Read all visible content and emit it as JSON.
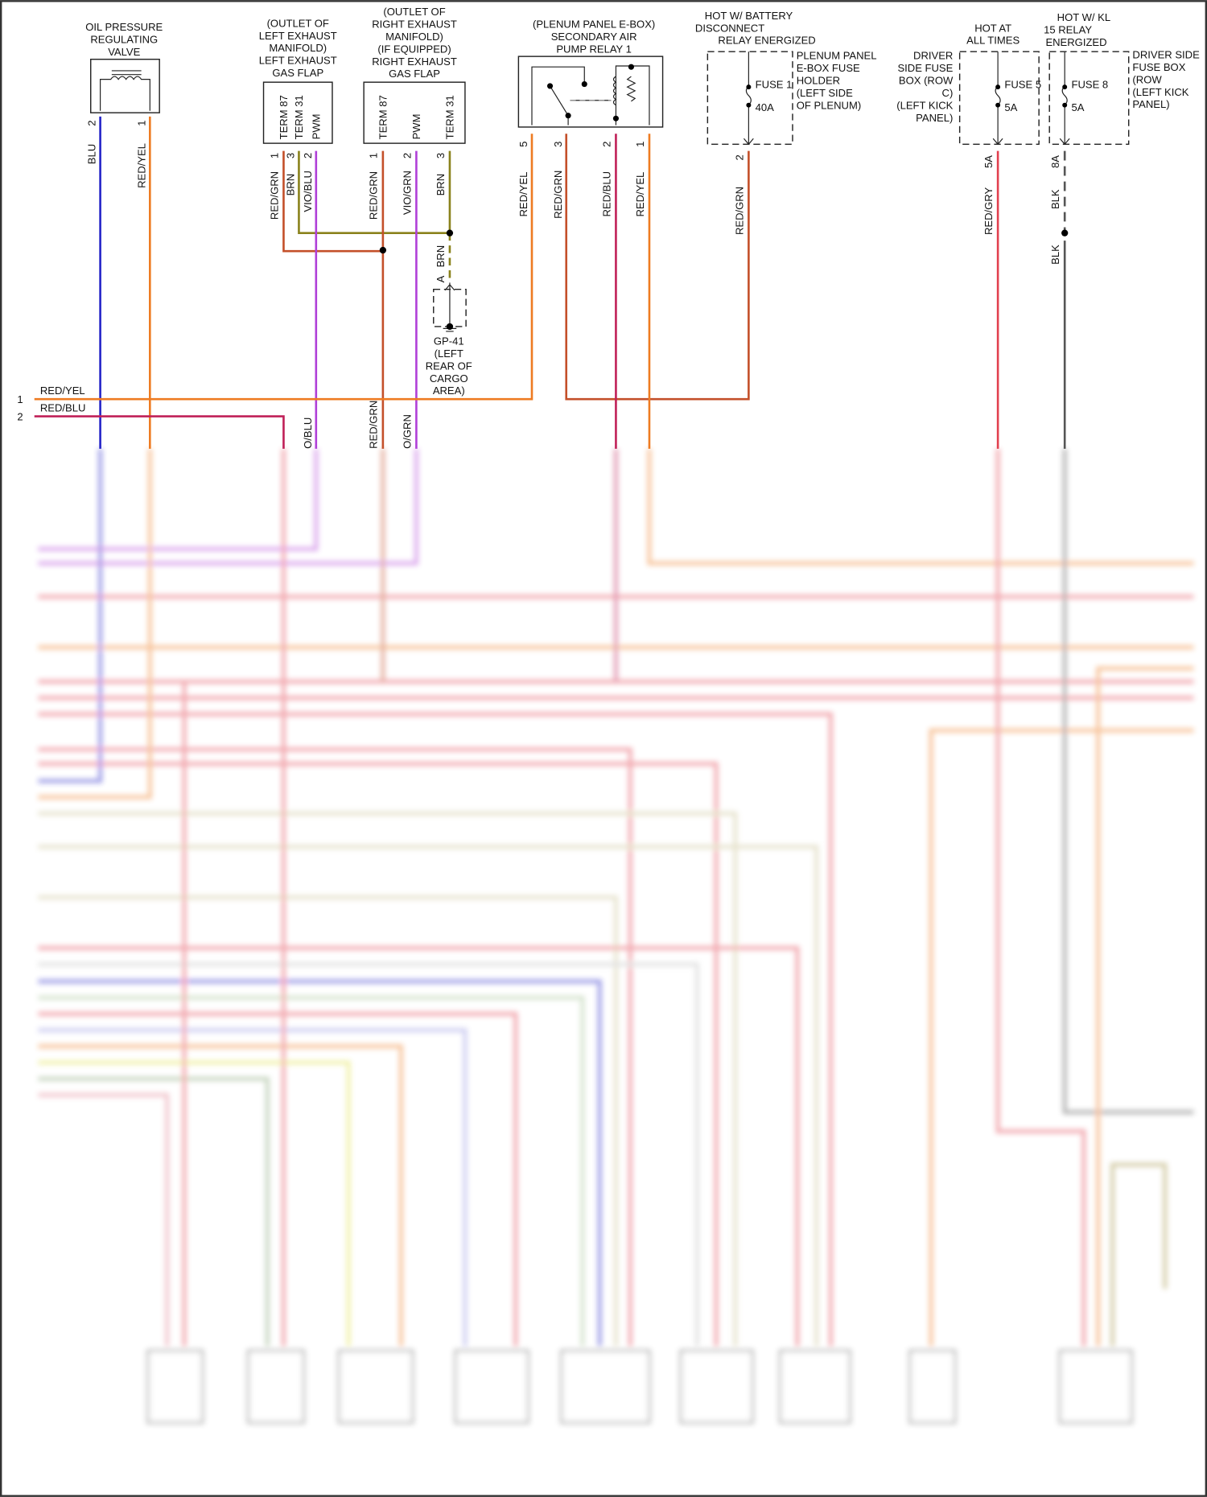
{
  "colors": {
    "red_yel": "#ee7b22",
    "red_grn": "#c4502a",
    "brn": "#8a821c",
    "vio": "#b040d8",
    "blu": "#2424c8",
    "red_blu": "#c02058",
    "red_gry": "#e2404f",
    "blk": "#555555"
  },
  "oil_valve": {
    "title": [
      "OIL PRESSURE",
      "REGULATING",
      "VALVE"
    ],
    "pins": [
      "2",
      "1"
    ],
    "wires": [
      "BLU",
      "RED/YEL"
    ]
  },
  "left_flap": {
    "title": [
      "(OUTLET OF",
      "LEFT EXHAUST",
      "MANIFOLD)",
      "LEFT EXHAUST",
      "GAS FLAP"
    ],
    "terms": [
      "TERM 87",
      "TERM 31",
      "PWM"
    ],
    "pins": [
      "1",
      "3",
      "2"
    ],
    "wires": [
      "RED/GRN",
      "BRN",
      "VIO/BLU"
    ]
  },
  "right_flap": {
    "title": [
      "(OUTLET OF",
      "RIGHT EXHAUST",
      "MANIFOLD)",
      "(IF EQUIPPED)",
      "RIGHT EXHAUST",
      "GAS FLAP"
    ],
    "terms": [
      "TERM 87",
      "PWM",
      "TERM 31"
    ],
    "pins": [
      "1",
      "2",
      "3"
    ],
    "wires": [
      "RED/GRN",
      "VIO/GRN",
      "BRN"
    ]
  },
  "ground": {
    "wire": "BRN",
    "pin": "A",
    "label": [
      "GP-41",
      "(LEFT",
      "REAR OF",
      "CARGO",
      "AREA)"
    ]
  },
  "relay": {
    "title": [
      "(PLENUM PANEL E-BOX)",
      "SECONDARY AIR",
      "PUMP RELAY 1"
    ],
    "pins": [
      "5",
      "3",
      "2",
      "1"
    ],
    "wires": [
      "RED/YEL",
      "RED/GRN",
      "RED/BLU",
      "RED/YEL"
    ]
  },
  "fuse1": {
    "hot": [
      "HOT W/ BATTERY",
      "DISCONNECT",
      "RELAY ENERGIZED"
    ],
    "name": "FUSE 1",
    "rating": "40A",
    "location": [
      "PLENUM PANEL",
      "E-BOX FUSE",
      "HOLDER",
      "(LEFT SIDE",
      "OF PLENUM)"
    ],
    "pin": "2",
    "wire": "RED/GRN"
  },
  "fuse5": {
    "hot": [
      "HOT AT",
      "ALL TIMES"
    ],
    "name": "FUSE 5",
    "rating": "5A",
    "location": [
      "DRIVER",
      "SIDE FUSE",
      "BOX (ROW",
      "C)",
      "(LEFT KICK",
      "PANEL)"
    ],
    "pin": "5A",
    "wire": "RED/GRY"
  },
  "fuse8": {
    "hot": [
      "HOT W/ KL",
      "15 RELAY",
      "ENERGIZED"
    ],
    "name": "FUSE 8",
    "rating": "5A",
    "location": [
      "DRIVER SIDE",
      "FUSE BOX",
      "(ROW",
      "(LEFT KICK",
      "PANEL)"
    ],
    "pin": "8A",
    "wires": [
      "BLK",
      "BLK"
    ]
  },
  "left_connector": {
    "pins": [
      "1",
      "2"
    ],
    "wires": [
      "RED/YEL",
      "RED/BLU"
    ]
  },
  "cut_labels": [
    "O/BLU",
    "RED/GRN",
    "O/GRN"
  ]
}
